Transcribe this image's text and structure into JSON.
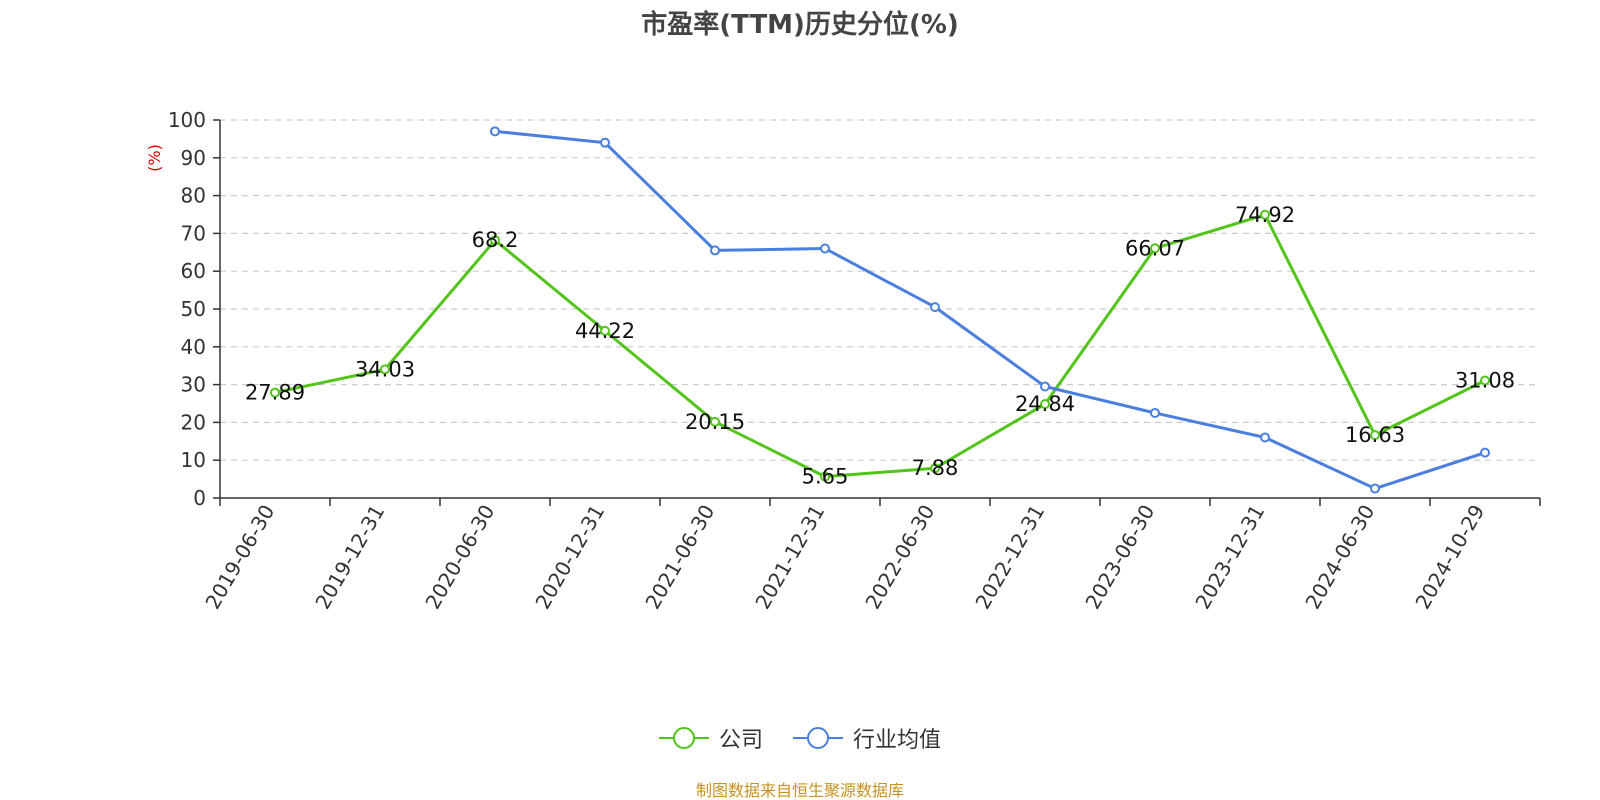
{
  "chart_data": {
    "type": "line",
    "title": "市盈率(TTM)历史分位(%)",
    "ylabel": "(%)",
    "ylim": [
      0,
      100
    ],
    "yticks": [
      0,
      10,
      20,
      30,
      40,
      50,
      60,
      70,
      80,
      90,
      100
    ],
    "categories": [
      "2019-06-30",
      "2019-12-31",
      "2020-06-30",
      "2020-12-31",
      "2021-06-30",
      "2021-12-31",
      "2022-06-30",
      "2022-12-31",
      "2023-06-30",
      "2023-12-31",
      "2024-06-30",
      "2024-10-29"
    ],
    "grid": true,
    "legend_position": "bottom",
    "series": [
      {
        "name": "公司",
        "color": "#52c41a",
        "show_labels": true,
        "values": [
          27.89,
          34.03,
          68.2,
          44.22,
          20.15,
          5.65,
          7.88,
          24.84,
          66.07,
          74.92,
          16.63,
          31.08
        ]
      },
      {
        "name": "行业均值",
        "color": "#4a7fde",
        "show_labels": false,
        "values": [
          null,
          null,
          97,
          94,
          65.5,
          66,
          50.5,
          29.5,
          22.5,
          16,
          2.5,
          12
        ]
      }
    ]
  },
  "source_note": "制图数据来自恒生聚源数据库"
}
